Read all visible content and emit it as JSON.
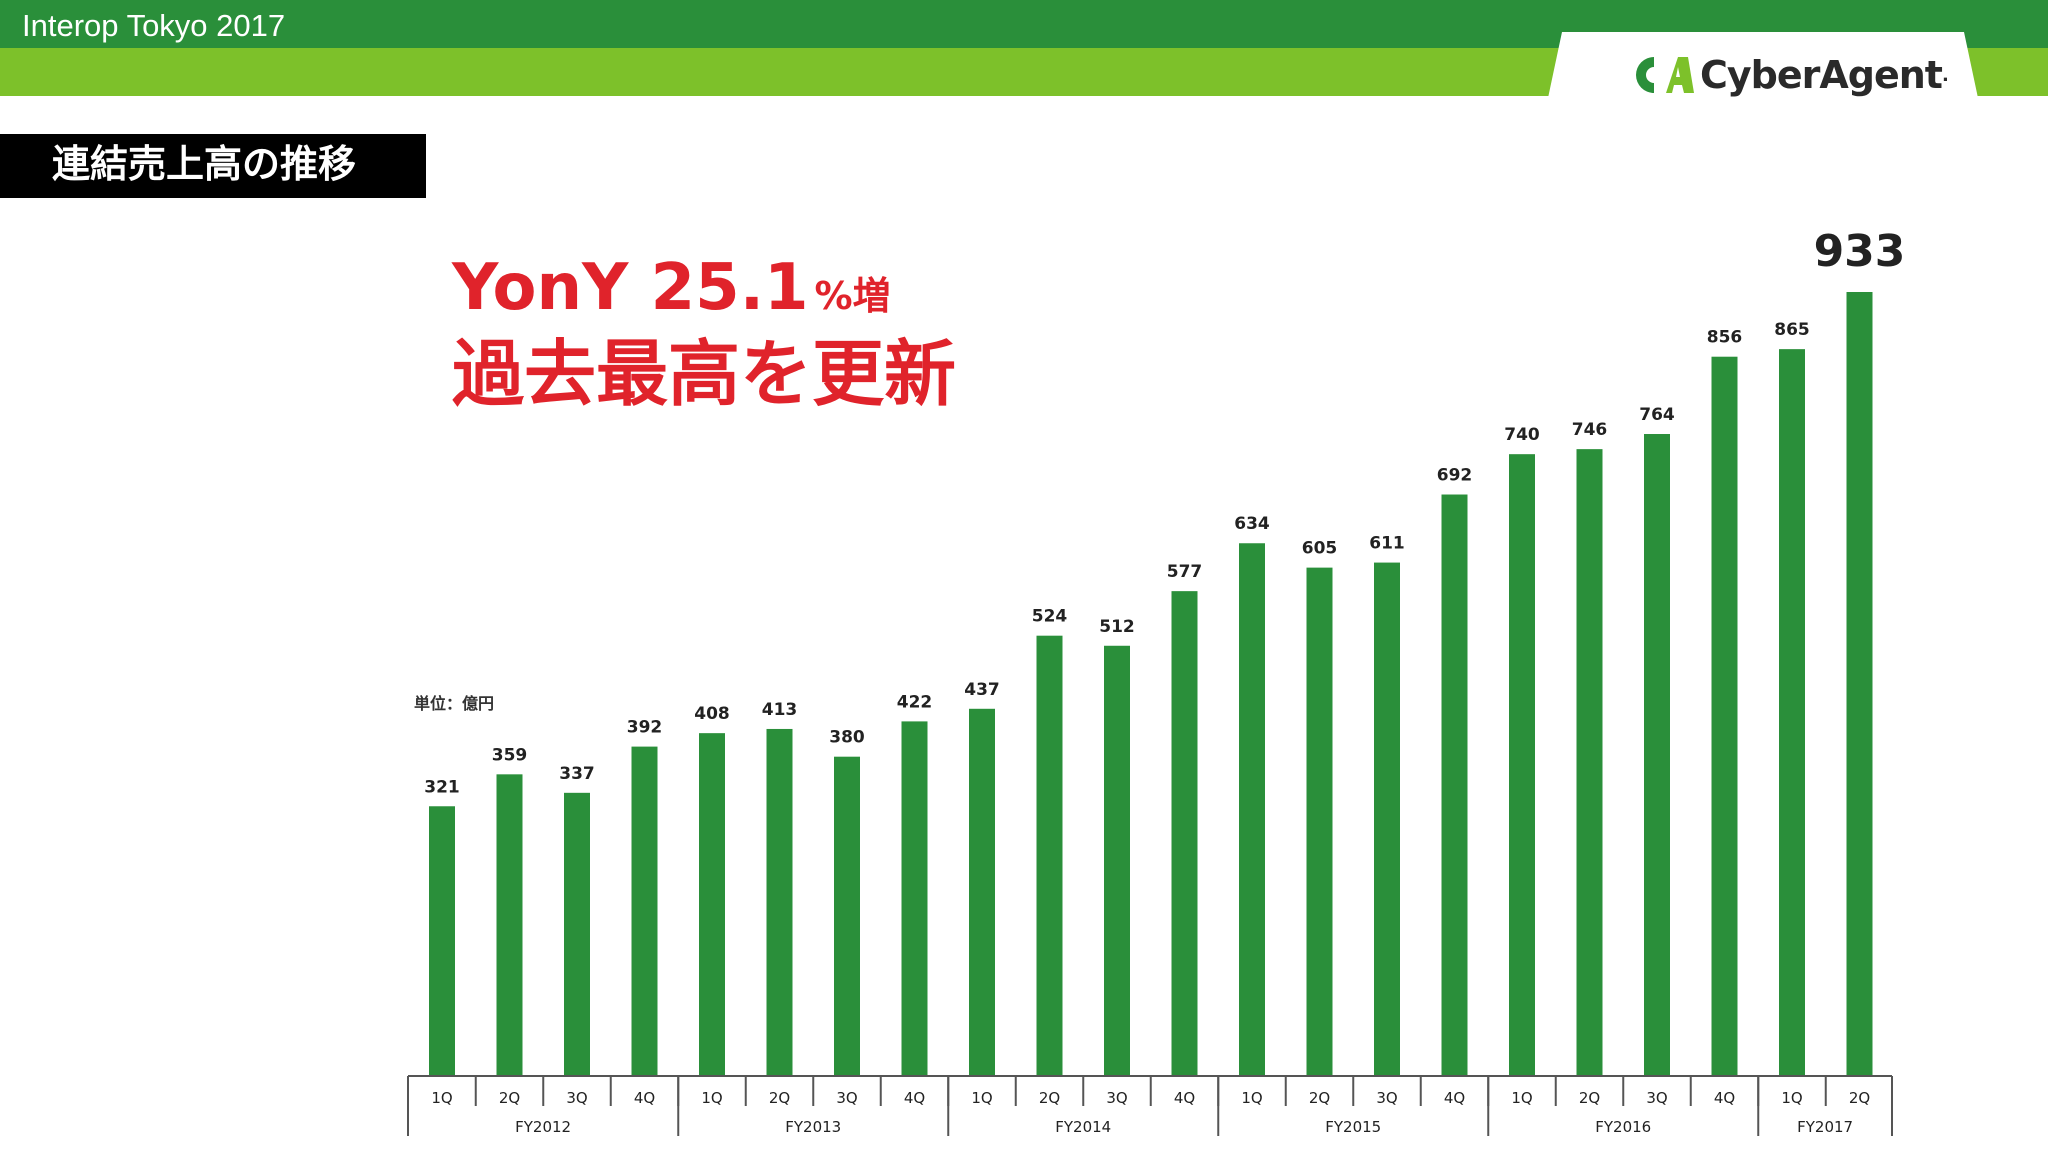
{
  "header": {
    "event_title": "Interop Tokyo 2017",
    "logo_text": "CyberAgent",
    "logo_mark": "CA",
    "logo_suffix": "."
  },
  "section_title": "連結売上高の推移",
  "headline": {
    "line1_main": "YonY 25.1",
    "line1_suffix": "%増",
    "line2": "過去最高を更新"
  },
  "unit_label": "単位：億円",
  "colors": {
    "bar": "#2a8f3a",
    "header_dark": "#2a8f3a",
    "header_light": "#7dc12a",
    "headline": "#e0232b"
  },
  "chart_data": {
    "type": "bar",
    "unit": "億円",
    "categories": [
      "1Q",
      "2Q",
      "3Q",
      "4Q",
      "1Q",
      "2Q",
      "3Q",
      "4Q",
      "1Q",
      "2Q",
      "3Q",
      "4Q",
      "1Q",
      "2Q",
      "3Q",
      "4Q",
      "1Q",
      "2Q",
      "3Q",
      "4Q",
      "1Q",
      "2Q"
    ],
    "values": [
      321,
      359,
      337,
      392,
      408,
      413,
      380,
      422,
      437,
      524,
      512,
      577,
      634,
      605,
      611,
      692,
      740,
      746,
      764,
      856,
      865,
      933
    ],
    "groups": [
      {
        "label": "FY2012",
        "count": 4
      },
      {
        "label": "FY2013",
        "count": 4
      },
      {
        "label": "FY2014",
        "count": 4
      },
      {
        "label": "FY2015",
        "count": 4
      },
      {
        "label": "FY2016",
        "count": 4
      },
      {
        "label": "FY2017",
        "count": 2
      }
    ],
    "highlight_last": true,
    "ylim": [
      0,
      1000
    ],
    "grid": false
  }
}
